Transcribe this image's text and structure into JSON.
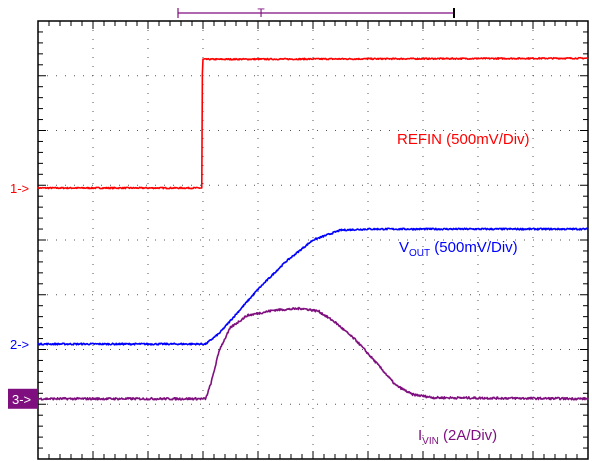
{
  "chart_data": {
    "type": "line",
    "title": "",
    "xlabel": "",
    "ylabel": "",
    "grid": true,
    "grid_divisions": {
      "x": 10,
      "y": 8
    },
    "xlim": [
      0,
      10
    ],
    "ylim": [
      0,
      8
    ],
    "trigger_marker": "T",
    "series": [
      {
        "name": "REFIN (500mV/Div)",
        "label_main": "REFIN (500mV/Div)",
        "label_sub": "",
        "label_tail": "",
        "marker": "1->",
        "marker_boxed": false,
        "color": "#ff0000",
        "noise": 0.012,
        "points": [
          [
            0,
            4.95
          ],
          [
            2.98,
            4.95
          ],
          [
            2.99,
            7.3
          ],
          [
            10,
            7.32
          ]
        ]
      },
      {
        "name": "VOUT (500mV/Div)",
        "label_main": "V",
        "label_sub": "OUT",
        "label_tail": " (500mV/Div)",
        "marker": "2->",
        "marker_boxed": false,
        "color": "#0000ff",
        "noise": 0.015,
        "points": [
          [
            0,
            2.1
          ],
          [
            3.05,
            2.1
          ],
          [
            3.3,
            2.3
          ],
          [
            4.0,
            3.1
          ],
          [
            4.5,
            3.6
          ],
          [
            5.0,
            4.0
          ],
          [
            5.5,
            4.18
          ],
          [
            6.0,
            4.2
          ],
          [
            10,
            4.2
          ]
        ]
      },
      {
        "name": "IVIN (2A/Div)",
        "label_main": "I",
        "label_sub": "VIN",
        "label_tail": " (2A/Div)",
        "marker": "3->",
        "marker_boxed": true,
        "color": "#7f0f7f",
        "noise": 0.02,
        "points": [
          [
            0,
            1.1
          ],
          [
            3.05,
            1.1
          ],
          [
            3.15,
            1.4
          ],
          [
            3.3,
            2.0
          ],
          [
            3.5,
            2.4
          ],
          [
            3.8,
            2.62
          ],
          [
            4.3,
            2.72
          ],
          [
            4.8,
            2.75
          ],
          [
            5.1,
            2.7
          ],
          [
            5.4,
            2.5
          ],
          [
            5.8,
            2.15
          ],
          [
            6.2,
            1.7
          ],
          [
            6.5,
            1.35
          ],
          [
            6.8,
            1.18
          ],
          [
            7.2,
            1.12
          ],
          [
            10,
            1.1
          ]
        ]
      }
    ]
  }
}
